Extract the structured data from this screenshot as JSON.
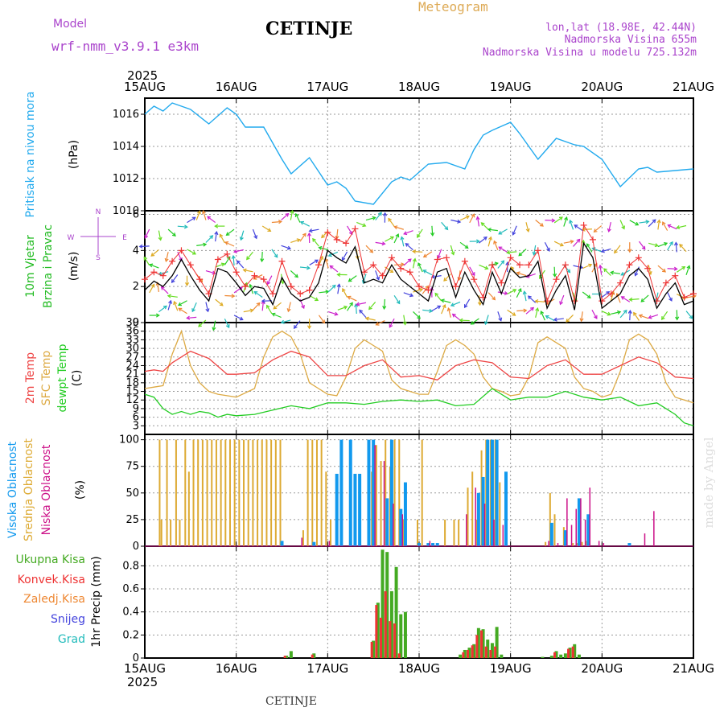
{
  "header": {
    "title": "CETINJE",
    "meteogram_label": "Meteogram",
    "model_label": "Model",
    "model_name": "wrf-nmm_v3.9.1  e3km",
    "lonlat": "lon,lat (18.98E, 42.44N)",
    "altitude": "Nadmorska Visina 655m",
    "model_altitude": "Nadmorska Visina u modelu 725.132m",
    "footer_title": "CETINJE",
    "watermark": "made by Angel"
  },
  "colors": {
    "pressure": "#22aaee",
    "wind_label": "#22bb22",
    "wind_speed_line": "#000000",
    "gust": "#ee3333",
    "temp2m": "#ee4444",
    "sfc_temp": "#ddaa44",
    "dewpoint": "#22cc22",
    "high_cloud": "#1199ee",
    "mid_cloud": "#ddaa33",
    "low_cloud": "#cc1188",
    "total_precip": "#44aa22",
    "conv_precip": "#ee3333",
    "frozen_precip": "#ee8833",
    "snow": "#4444dd",
    "graupel": "#22bbbb",
    "header_purple": "#aa44cc",
    "header_orange": "#ddaa55"
  },
  "chart_data": [
    {
      "type": "line",
      "id": "pressure",
      "title": "Pritisak na nivou mora",
      "ylabel": "(hPa)",
      "ylim": [
        1010,
        1017
      ],
      "yticks": [
        1010,
        1012,
        1014,
        1016
      ],
      "x_unit": "days since 15AUG 00UTC",
      "date_labels": [
        "15AUG",
        "16AUG",
        "17AUG",
        "18AUG",
        "19AUG",
        "20AUG",
        "21AUG"
      ],
      "year_label": "2025",
      "series": [
        {
          "name": "Pritisak",
          "x": [
            0,
            0.1,
            0.2,
            0.3,
            0.5,
            0.7,
            0.8,
            0.9,
            1.0,
            1.1,
            1.3,
            1.5,
            1.6,
            1.8,
            2.0,
            2.1,
            2.2,
            2.3,
            2.5,
            2.7,
            2.8,
            2.9,
            3.0,
            3.1,
            3.3,
            3.5,
            3.6,
            3.7,
            3.8,
            4.0,
            4.1,
            4.3,
            4.5,
            4.7,
            4.8,
            5.0,
            5.2,
            5.4,
            5.5,
            5.6,
            5.8,
            6.0
          ],
          "values": [
            1016.0,
            1016.5,
            1016.2,
            1016.7,
            1016.3,
            1015.4,
            1015.9,
            1016.4,
            1016.0,
            1015.2,
            1015.2,
            1013.2,
            1012.3,
            1013.3,
            1011.6,
            1011.8,
            1011.4,
            1010.6,
            1010.4,
            1011.8,
            1012.1,
            1011.9,
            1012.4,
            1012.9,
            1013.0,
            1012.6,
            1013.8,
            1014.7,
            1015.0,
            1015.5,
            1014.8,
            1013.2,
            1014.5,
            1014.1,
            1014.0,
            1013.2,
            1011.5,
            1012.6,
            1012.7,
            1012.4,
            1012.5,
            1012.6
          ]
        }
      ]
    },
    {
      "type": "line",
      "id": "wind",
      "title_lines": [
        "10m Vjetar",
        "Brzina i Pravac"
      ],
      "ylabel": "(m/s)",
      "compass": [
        "N",
        "S",
        "E",
        "W"
      ],
      "ylim": [
        0,
        6.2
      ],
      "yticks": [
        0,
        2,
        4,
        6
      ],
      "series": [
        {
          "name": "Brzina vjetra",
          "x": [
            0,
            0.1,
            0.2,
            0.3,
            0.4,
            0.5,
            0.6,
            0.7,
            0.8,
            0.9,
            1.0,
            1.1,
            1.2,
            1.3,
            1.4,
            1.5,
            1.6,
            1.7,
            1.8,
            1.9,
            2.0,
            2.1,
            2.2,
            2.3,
            2.4,
            2.5,
            2.6,
            2.7,
            2.8,
            2.9,
            3.0,
            3.1,
            3.2,
            3.3,
            3.4,
            3.5,
            3.6,
            3.7,
            3.8,
            3.9,
            4.0,
            4.1,
            4.2,
            4.3,
            4.4,
            4.5,
            4.6,
            4.7,
            4.8,
            4.9,
            5.0,
            5.1,
            5.2,
            5.3,
            5.4,
            5.5,
            5.6,
            5.7,
            5.8,
            5.9,
            6.0
          ],
          "values": [
            1.8,
            2.3,
            2.0,
            2.6,
            3.5,
            2.6,
            1.8,
            1.2,
            3.0,
            2.8,
            2.2,
            1.5,
            2.0,
            1.9,
            1.0,
            2.5,
            1.6,
            1.2,
            1.4,
            2.2,
            4.0,
            3.6,
            3.3,
            4.2,
            2.2,
            2.4,
            2.2,
            3.2,
            2.4,
            2.0,
            1.6,
            1.2,
            2.8,
            3.0,
            1.4,
            2.8,
            1.8,
            1.0,
            2.8,
            1.6,
            3.0,
            2.5,
            2.6,
            3.4,
            0.8,
            1.8,
            2.6,
            0.7,
            4.4,
            3.6,
            0.8,
            1.2,
            1.6,
            2.6,
            3.0,
            2.4,
            0.8,
            1.6,
            2.2,
            1.0,
            1.2
          ]
        },
        {
          "name": "Udari vjetra",
          "x": [
            0,
            0.1,
            0.2,
            0.3,
            0.4,
            0.5,
            0.6,
            0.7,
            0.8,
            0.9,
            1.0,
            1.1,
            1.2,
            1.3,
            1.4,
            1.5,
            1.6,
            1.7,
            1.8,
            1.9,
            2.0,
            2.1,
            2.2,
            2.3,
            2.4,
            2.5,
            2.6,
            2.7,
            2.8,
            2.9,
            3.0,
            3.1,
            3.2,
            3.3,
            3.4,
            3.5,
            3.6,
            3.7,
            3.8,
            3.9,
            4.0,
            4.1,
            4.2,
            4.3,
            4.4,
            4.5,
            4.6,
            4.7,
            4.8,
            4.9,
            5.0,
            5.1,
            5.2,
            5.3,
            5.4,
            5.5,
            5.6,
            5.7,
            5.8,
            5.9,
            6.0
          ],
          "values": [
            2.4,
            2.8,
            2.6,
            3.4,
            4.0,
            3.2,
            2.4,
            1.6,
            3.5,
            3.8,
            2.8,
            2.0,
            2.6,
            2.4,
            1.6,
            3.4,
            2.0,
            1.6,
            1.8,
            3.2,
            5.0,
            4.6,
            4.4,
            5.2,
            2.8,
            3.2,
            2.6,
            3.6,
            3.0,
            2.8,
            2.0,
            1.8,
            3.5,
            3.6,
            2.0,
            3.4,
            2.4,
            1.4,
            3.2,
            2.2,
            3.6,
            3.2,
            3.2,
            4.0,
            1.2,
            2.4,
            3.2,
            1.2,
            5.4,
            4.6,
            1.2,
            1.6,
            2.2,
            3.2,
            3.6,
            3.0,
            1.2,
            2.2,
            2.6,
            1.4,
            1.6
          ]
        }
      ]
    },
    {
      "type": "line",
      "id": "temperature",
      "title_lines": [
        "2m Temp",
        "SFC Temp",
        "dewpt Temp"
      ],
      "ylabel": "(C)",
      "ylim": [
        0,
        39
      ],
      "yticks": [
        3,
        6,
        9,
        12,
        15,
        18,
        21,
        24,
        27,
        30,
        33,
        36,
        39
      ],
      "series": [
        {
          "name": "2m Temp",
          "x": [
            0,
            0.1,
            0.2,
            0.3,
            0.5,
            0.7,
            0.9,
            1.0,
            1.2,
            1.4,
            1.6,
            1.8,
            2.0,
            2.2,
            2.4,
            2.6,
            2.8,
            3.0,
            3.2,
            3.4,
            3.6,
            3.8,
            4.0,
            4.2,
            4.4,
            4.6,
            4.8,
            5.0,
            5.2,
            5.4,
            5.6,
            5.8,
            6.0
          ],
          "values": [
            22,
            22.5,
            22,
            25,
            29,
            26.5,
            21,
            21,
            21.5,
            26,
            29,
            27,
            20.5,
            20.5,
            24,
            26,
            20,
            20.5,
            19,
            24,
            26,
            25,
            20,
            19.5,
            24,
            26,
            21,
            21,
            24,
            27,
            25,
            20,
            19.5
          ]
        },
        {
          "name": "SFC Temp",
          "x": [
            0,
            0.1,
            0.2,
            0.3,
            0.4,
            0.5,
            0.6,
            0.7,
            0.8,
            0.9,
            1.0,
            1.2,
            1.3,
            1.4,
            1.5,
            1.6,
            1.7,
            1.8,
            1.9,
            2.0,
            2.1,
            2.2,
            2.3,
            2.4,
            2.5,
            2.6,
            2.7,
            2.8,
            2.9,
            3.0,
            3.1,
            3.2,
            3.3,
            3.4,
            3.5,
            3.6,
            3.7,
            3.8,
            3.9,
            4.0,
            4.1,
            4.2,
            4.3,
            4.4,
            4.5,
            4.6,
            4.7,
            4.8,
            4.9,
            5.0,
            5.1,
            5.2,
            5.3,
            5.4,
            5.5,
            5.6,
            5.7,
            5.8,
            5.9,
            6.0
          ],
          "values": [
            16,
            16.5,
            17,
            28,
            36,
            24,
            18,
            15,
            14,
            13.5,
            13,
            16,
            27,
            34,
            36,
            34,
            28,
            18,
            16,
            14,
            13.5,
            20,
            30,
            33,
            31,
            29,
            19,
            16,
            15,
            14,
            14,
            22,
            31,
            33,
            31,
            28,
            20,
            16,
            15,
            13.5,
            14,
            20,
            32,
            34,
            32,
            30,
            20,
            16,
            15,
            13,
            14,
            22,
            33,
            35,
            33,
            28,
            18,
            13,
            12,
            11
          ]
        },
        {
          "name": "dewpt Temp",
          "x": [
            0,
            0.1,
            0.2,
            0.3,
            0.4,
            0.5,
            0.6,
            0.7,
            0.8,
            0.9,
            1.0,
            1.2,
            1.4,
            1.6,
            1.8,
            2.0,
            2.2,
            2.4,
            2.6,
            2.8,
            3.0,
            3.2,
            3.4,
            3.6,
            3.8,
            4.0,
            4.2,
            4.4,
            4.6,
            4.8,
            5.0,
            5.2,
            5.4,
            5.6,
            5.8,
            5.9,
            6.0
          ],
          "values": [
            14,
            13,
            9,
            7,
            8,
            7,
            8,
            7.5,
            6,
            7,
            6.5,
            7,
            8.5,
            10,
            9,
            11,
            11,
            10.5,
            11.5,
            12,
            11.5,
            12,
            10,
            10.5,
            16,
            12,
            13,
            13,
            15,
            13,
            12,
            13,
            10,
            11,
            7,
            4,
            3
          ]
        }
      ]
    },
    {
      "type": "bar",
      "id": "cloud",
      "title_lines": [
        "Visoka Oblacnost",
        "Srednja Oblacnost",
        "Niska Oblacnost"
      ],
      "ylabel": "(%)",
      "ylim": [
        0,
        105
      ],
      "yticks": [
        0,
        25,
        50,
        75,
        100
      ],
      "series": [
        {
          "name": "Visoka Oblacnost",
          "x": [
            1.5,
            1.85,
            2.1,
            2.15,
            2.25,
            2.3,
            2.35,
            2.45,
            2.5,
            2.65,
            2.7,
            2.8,
            2.85,
            3.0,
            3.1,
            3.15,
            3.2,
            3.65,
            3.7,
            3.75,
            3.8,
            3.85,
            3.95,
            4.45,
            4.6,
            4.75,
            4.85,
            5.3
          ],
          "values": [
            5,
            4,
            68,
            100,
            100,
            68,
            68,
            100,
            100,
            45,
            100,
            35,
            60,
            3,
            3,
            3,
            3,
            50,
            65,
            100,
            100,
            100,
            70,
            22,
            15,
            45,
            30,
            3
          ]
        },
        {
          "name": "Srednja Oblacnost",
          "x": [
            0.18,
            0.2,
            0.26,
            0.3,
            0.36,
            0.4,
            0.46,
            0.5,
            0.55,
            0.6,
            0.65,
            0.7,
            0.75,
            0.8,
            0.85,
            0.9,
            0.95,
            1.0,
            1.05,
            1.1,
            1.15,
            1.2,
            1.25,
            1.3,
            1.35,
            1.4,
            1.45,
            1.5,
            1.75,
            1.8,
            1.85,
            1.9,
            1.95,
            2.0,
            2.05,
            2.5,
            2.55,
            2.6,
            2.65,
            2.7,
            2.75,
            2.8,
            2.85,
            3.0,
            3.05,
            3.3,
            3.4,
            3.45,
            3.55,
            3.6,
            3.65,
            3.7,
            3.75,
            3.8,
            3.85,
            3.9,
            4.4,
            4.45,
            4.5,
            4.6,
            4.7,
            4.75,
            4.8,
            4.85
          ],
          "values": [
            100,
            25,
            100,
            25,
            100,
            25,
            100,
            70,
            100,
            100,
            100,
            100,
            100,
            100,
            100,
            100,
            100,
            100,
            100,
            100,
            100,
            100,
            100,
            100,
            100,
            100,
            100,
            100,
            15,
            100,
            100,
            100,
            100,
            70,
            25,
            70,
            95,
            80,
            100,
            75,
            100,
            100,
            25,
            25,
            100,
            25,
            25,
            25,
            55,
            70,
            25,
            90,
            100,
            100,
            100,
            60,
            4,
            50,
            30,
            18,
            3,
            3,
            4,
            5
          ]
        },
        {
          "name": "Niska Oblacnost",
          "x": [
            1.7,
            2.0,
            2.5,
            2.6,
            2.7,
            2.8,
            3.1,
            3.5,
            3.6,
            3.7,
            3.8,
            3.9,
            4.4,
            4.5,
            4.6,
            4.65,
            4.7,
            4.75,
            4.8,
            4.85,
            4.95,
            5.0,
            5.45,
            5.55
          ],
          "values": [
            8,
            5,
            95,
            80,
            40,
            30,
            5,
            30,
            55,
            40,
            25,
            20,
            5,
            3,
            45,
            20,
            35,
            45,
            25,
            55,
            5,
            3,
            12,
            33
          ]
        }
      ]
    },
    {
      "type": "bar",
      "id": "precip",
      "title_lines": [
        "Ukupna Kisa",
        "Konvek.Kisa",
        "Zaledj.Kisa",
        "Snijeg",
        "Grad"
      ],
      "ylabel": "1hr Precip (mm)",
      "ylim": [
        0,
        0.97
      ],
      "yticks": [
        0,
        0.2,
        0.4,
        0.6,
        0.8
      ],
      "series": [
        {
          "name": "Ukupna Kisa",
          "x": [
            1.55,
            1.6,
            1.85,
            2.5,
            2.55,
            2.6,
            2.65,
            2.7,
            2.75,
            2.8,
            2.85,
            3.45,
            3.5,
            3.55,
            3.6,
            3.65,
            3.7,
            3.75,
            3.8,
            3.85,
            3.9,
            4.35,
            4.45,
            4.5,
            4.55,
            4.6,
            4.65,
            4.7,
            4.75
          ],
          "values": [
            0.02,
            0.06,
            0.04,
            0.15,
            0.48,
            0.94,
            0.92,
            0.58,
            0.79,
            0.38,
            0.4,
            0.03,
            0.07,
            0.09,
            0.12,
            0.26,
            0.25,
            0.16,
            0.13,
            0.27,
            0.03,
            0.01,
            0.02,
            0.06,
            0.03,
            0.04,
            0.09,
            0.12,
            0.03
          ]
        },
        {
          "name": "Konvek.Kisa",
          "x": [
            1.55,
            1.85,
            2.5,
            2.55,
            2.6,
            2.65,
            2.7,
            2.75,
            2.8,
            3.5,
            3.55,
            3.6,
            3.65,
            3.7,
            3.75,
            3.8,
            3.85,
            4.5,
            4.65,
            4.7
          ],
          "values": [
            0.02,
            0.03,
            0.14,
            0.46,
            0.35,
            0.58,
            0.32,
            0.3,
            0.04,
            0.05,
            0.07,
            0.11,
            0.2,
            0.24,
            0.1,
            0.07,
            0.1,
            0.05,
            0.08,
            0.1
          ]
        }
      ]
    }
  ]
}
